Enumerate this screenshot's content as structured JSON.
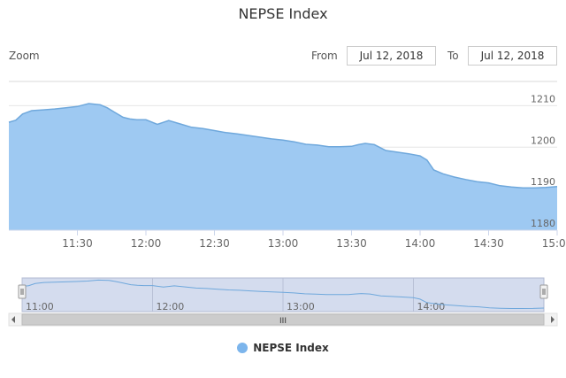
{
  "title": "NEPSE Index",
  "range_selector": {
    "zoom_label": "Zoom",
    "from_label": "From",
    "from_value": "Jul 12, 2018",
    "to_label": "To",
    "to_value": "Jul 12, 2018"
  },
  "legend": {
    "label": "NEPSE Index",
    "color": "#7cb5ec"
  },
  "colors": {
    "fill": "#9ec9f2",
    "line": "#6fa8dc",
    "navigator_mask": "#c6d0e8",
    "grid": "#e6e6e6"
  },
  "navigator": {
    "x_ticks": [
      "11:00",
      "12:00",
      "13:00",
      "14:00"
    ],
    "scrollbar_grip": "III"
  },
  "chart_data": {
    "type": "area",
    "title": "NEPSE Index",
    "xlabel": "",
    "ylabel": "",
    "x_ticks": [
      "11:30",
      "12:00",
      "12:30",
      "13:00",
      "13:30",
      "14:00",
      "14:30",
      "15:00"
    ],
    "y_ticks": [
      1180,
      1190,
      1200,
      1210
    ],
    "ylim": [
      1180,
      1212
    ],
    "xlim": [
      "11:00",
      "15:00"
    ],
    "grid": true,
    "legend_position": "bottom",
    "series": [
      {
        "name": "NEPSE Index",
        "x": [
          "11:00",
          "11:03",
          "11:06",
          "11:10",
          "11:15",
          "11:20",
          "11:25",
          "11:30",
          "11:35",
          "11:40",
          "11:43",
          "11:46",
          "11:50",
          "11:53",
          "11:56",
          "12:00",
          "12:05",
          "12:10",
          "12:15",
          "12:20",
          "12:25",
          "12:30",
          "12:35",
          "12:40",
          "12:45",
          "12:50",
          "12:55",
          "13:00",
          "13:05",
          "13:10",
          "13:15",
          "13:20",
          "13:25",
          "13:30",
          "13:33",
          "13:36",
          "13:40",
          "13:45",
          "13:50",
          "13:55",
          "14:00",
          "14:03",
          "14:06",
          "14:10",
          "14:15",
          "14:20",
          "14:25",
          "14:30",
          "14:35",
          "14:40",
          "14:45",
          "14:50",
          "14:55",
          "15:00"
        ],
        "y": [
          1206,
          1206.5,
          1208,
          1208.8,
          1209,
          1209.2,
          1209.5,
          1209.8,
          1210.5,
          1210.2,
          1209.5,
          1208.5,
          1207.2,
          1206.8,
          1206.6,
          1206.6,
          1205.5,
          1206.4,
          1205.6,
          1204.8,
          1204.5,
          1204,
          1203.5,
          1203.2,
          1202.8,
          1202.4,
          1202,
          1201.7,
          1201.3,
          1200.7,
          1200.5,
          1200.1,
          1200.1,
          1200.2,
          1200.6,
          1200.9,
          1200.6,
          1199.2,
          1198.8,
          1198.4,
          1197.9,
          1196.9,
          1194.5,
          1193.6,
          1192.8,
          1192.2,
          1191.7,
          1191.4,
          1190.7,
          1190.4,
          1190.2,
          1190.2,
          1190.3,
          1190.5
        ]
      }
    ]
  }
}
